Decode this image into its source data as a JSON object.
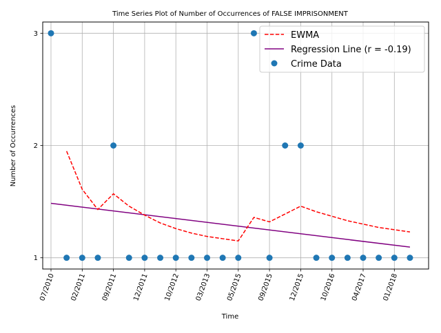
{
  "chart_data": {
    "type": "scatter",
    "title": "Time Series Plot of Number of Occurrences of FALSE IMPRISONMENT",
    "xlabel": "Time",
    "ylabel": "Number of Occurrences",
    "ylim": [
      0.9,
      3.1
    ],
    "y_ticks": [
      1,
      2,
      3
    ],
    "grid": true,
    "legend_position": "top-right",
    "x_tick_labels": [
      "07/2010",
      "02/2011",
      "09/2011",
      "12/2011",
      "10/2012",
      "03/2013",
      "05/2015",
      "09/2015",
      "12/2015",
      "10/2016",
      "04/2017",
      "01/2018"
    ],
    "x_positions_label_index": [
      0,
      2,
      4,
      6,
      8,
      10,
      12,
      14,
      16,
      18,
      20,
      22
    ],
    "series": [
      {
        "name": "Crime Data",
        "kind": "scatter",
        "color": "#1f77b4",
        "x_index": [
          0,
          1,
          2,
          3,
          4,
          5,
          6,
          7,
          8,
          9,
          10,
          11,
          12,
          13,
          14,
          15,
          16,
          17,
          18,
          19,
          20,
          21,
          22,
          23
        ],
        "values": [
          3,
          1,
          1,
          1,
          2,
          1,
          1,
          1,
          1,
          1,
          1,
          1,
          1,
          3,
          1,
          2,
          2,
          1,
          1,
          1,
          1,
          1,
          1,
          1
        ]
      },
      {
        "name": "EWMA",
        "kind": "dashed-line",
        "color": "#ff0000",
        "x_index": [
          1,
          2,
          3,
          4,
          5,
          6,
          7,
          8,
          9,
          10,
          11,
          12,
          13,
          14,
          15,
          16,
          17,
          18,
          19,
          20,
          21,
          22,
          23
        ],
        "values": [
          1.95,
          1.61,
          1.43,
          1.57,
          1.46,
          1.38,
          1.31,
          1.26,
          1.22,
          1.19,
          1.17,
          1.15,
          1.36,
          1.32,
          1.39,
          1.46,
          1.41,
          1.37,
          1.33,
          1.3,
          1.27,
          1.25,
          1.23
        ]
      },
      {
        "name": "Regression Line (r = -0.19)",
        "kind": "line",
        "color": "#800080",
        "x_index": [
          0,
          23
        ],
        "values": [
          1.485,
          1.095
        ]
      }
    ]
  }
}
